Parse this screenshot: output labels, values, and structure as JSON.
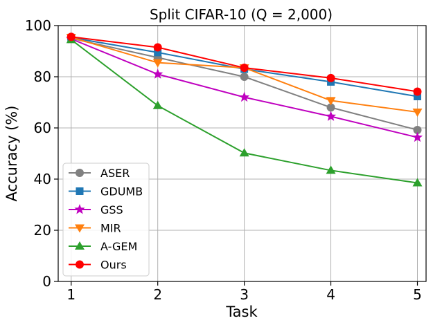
{
  "chart_data": {
    "type": "line",
    "title": "Split CIFAR-10 (Q = 2,000)",
    "xlabel": "Task",
    "ylabel": "Accuracy (%)",
    "x": [
      1,
      2,
      3,
      4,
      5
    ],
    "xlim": [
      0.85,
      5.1
    ],
    "ylim": [
      0,
      100
    ],
    "yticks": [
      0,
      20,
      40,
      60,
      80,
      100
    ],
    "grid": true,
    "legend_position": "lower-left",
    "series": [
      {
        "name": "ASER",
        "color": "#808080",
        "marker": "circle",
        "values": [
          95.0,
          87.5,
          80.0,
          68.0,
          59.2
        ]
      },
      {
        "name": "GDUMB",
        "color": "#1f77b4",
        "marker": "square",
        "values": [
          95.3,
          89.5,
          83.0,
          78.0,
          72.3
        ]
      },
      {
        "name": "GSS",
        "color": "#bf00bf",
        "marker": "star",
        "values": [
          94.8,
          81.0,
          72.0,
          64.5,
          56.3
        ]
      },
      {
        "name": "MIR",
        "color": "#ff7f0e",
        "marker": "tri-down",
        "values": [
          95.4,
          85.5,
          83.5,
          70.7,
          66.2
        ]
      },
      {
        "name": "A-GEM",
        "color": "#2ca02c",
        "marker": "tri-up",
        "values": [
          94.5,
          68.7,
          50.2,
          43.4,
          38.5
        ]
      },
      {
        "name": "Ours",
        "color": "#ff0000",
        "marker": "circle",
        "values": [
          95.6,
          91.5,
          83.5,
          79.5,
          74.2
        ]
      }
    ]
  }
}
